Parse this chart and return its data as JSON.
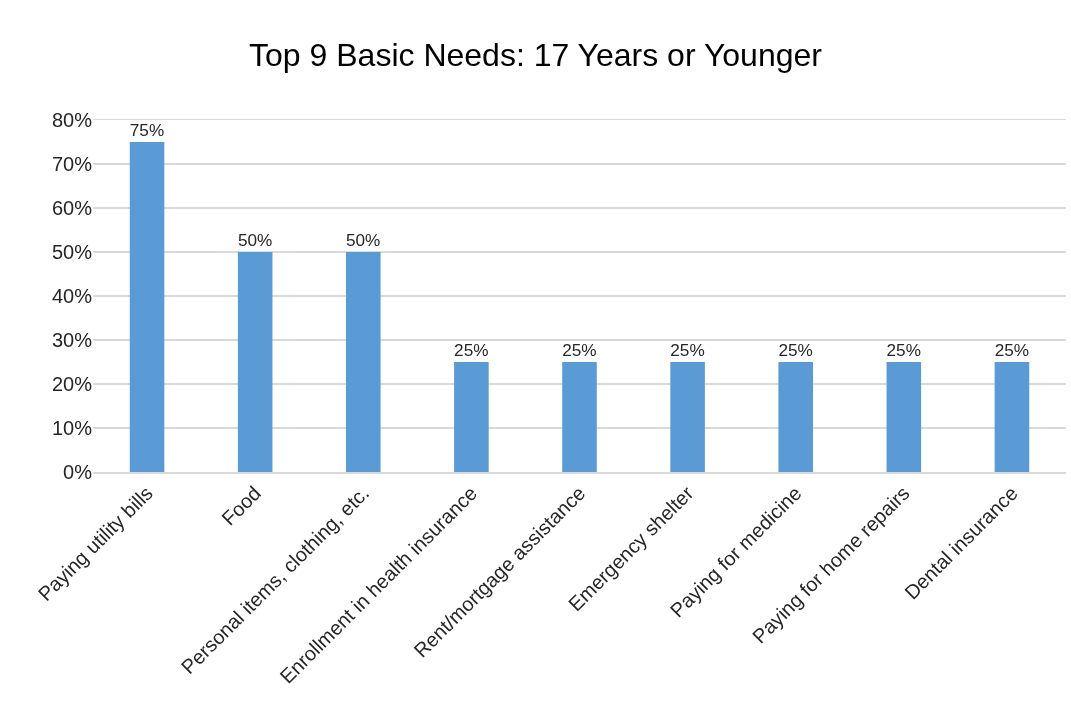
{
  "chart_data": {
    "type": "bar",
    "title": "Top 9 Basic Needs: 17 Years or Younger",
    "categories": [
      "Paying utility bills",
      "Food",
      "Personal items, clothing, etc.",
      "Enrollment in health insurance",
      "Rent/mortgage assistance",
      "Emergency shelter",
      "Paying for medicine",
      "Paying for home repairs",
      "Dental insurance"
    ],
    "values": [
      75,
      50,
      50,
      25,
      25,
      25,
      25,
      25,
      25
    ],
    "value_labels": [
      "75%",
      "50%",
      "50%",
      "25%",
      "25%",
      "25%",
      "25%",
      "25%",
      "25%"
    ],
    "color": "#5b9bd5",
    "ylim": [
      0,
      80
    ],
    "yticks": [
      {
        "value": 0,
        "label": "0%"
      },
      {
        "value": 10,
        "label": "10%"
      },
      {
        "value": 20,
        "label": "20%"
      },
      {
        "value": 30,
        "label": "30%"
      },
      {
        "value": 40,
        "label": "40%"
      },
      {
        "value": 50,
        "label": "50%"
      },
      {
        "value": 60,
        "label": "60%"
      },
      {
        "value": 70,
        "label": "70%"
      },
      {
        "value": 80,
        "label": "80%"
      }
    ],
    "grid": "y"
  }
}
